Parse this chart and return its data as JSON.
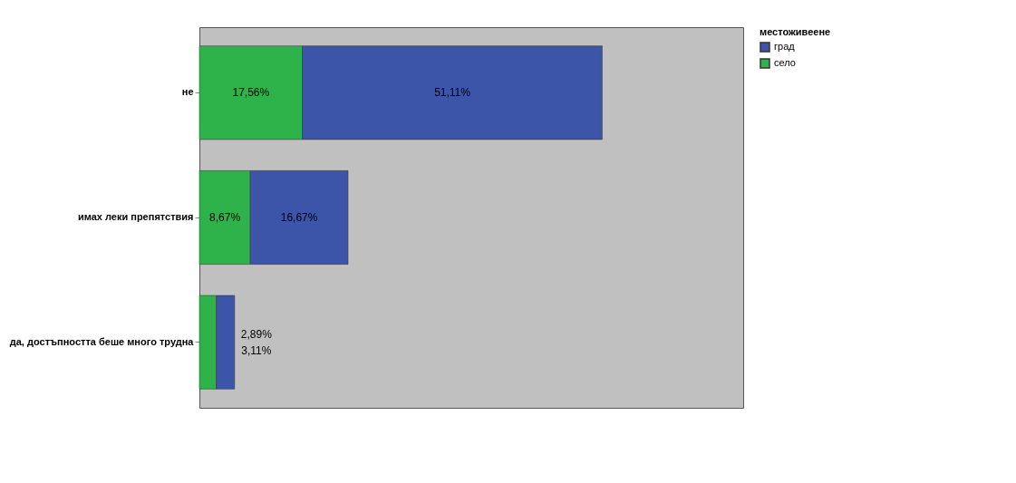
{
  "chart_data": {
    "type": "bar",
    "orientation": "horizontal",
    "stacked": true,
    "legend_title": "местоживеене",
    "legend": "top right",
    "categories": [
      "не",
      "имах леки препятствия",
      "да, достъпността беше много трудна"
    ],
    "series": [
      {
        "name": "село",
        "color": "#2db34a",
        "values": [
          17.56,
          8.67,
          2.89
        ],
        "value_labels": [
          "17,56%",
          "8,67%",
          "2,89%"
        ]
      },
      {
        "name": "град",
        "color": "#3c55a8",
        "values": [
          51.11,
          16.67,
          3.11
        ],
        "value_labels": [
          "51,11%",
          "16,67%",
          "3,11%"
        ]
      }
    ]
  }
}
